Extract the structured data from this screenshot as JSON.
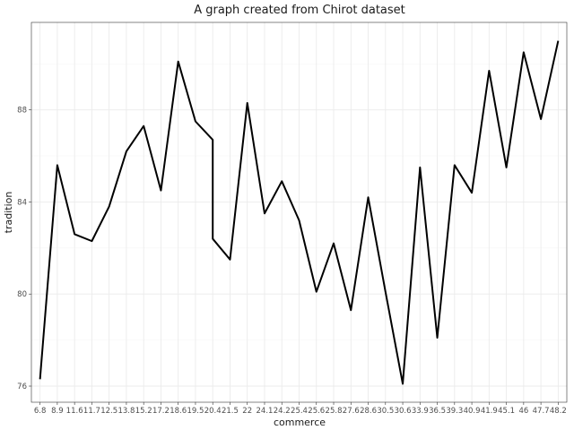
{
  "chart_data": {
    "type": "line",
    "title": "A graph created from Chirot dataset",
    "xlabel": "commerce",
    "ylabel": "tradition",
    "categories": [
      "6.8",
      "8.9",
      "11.6",
      "11.7",
      "12.5",
      "13.8",
      "15.2",
      "17.2",
      "18.6",
      "19.5",
      "20.4",
      "21.5",
      "22",
      "24.1",
      "24.2",
      "25.4",
      "25.6",
      "25.8",
      "27.6",
      "28.6",
      "30.5",
      "30.6",
      "33.9",
      "36.5",
      "39.3",
      "40.9",
      "41.9",
      "45.1",
      "46",
      "47.7",
      "48.2"
    ],
    "points": [
      {
        "x": "6.8",
        "y": 76.3
      },
      {
        "x": "8.9",
        "y": 85.6
      },
      {
        "x": "11.6",
        "y": 82.6
      },
      {
        "x": "11.7",
        "y": 82.3
      },
      {
        "x": "12.5",
        "y": 83.8
      },
      {
        "x": "13.8",
        "y": 86.2
      },
      {
        "x": "15.2",
        "y": 87.3
      },
      {
        "x": "17.2",
        "y": 84.5
      },
      {
        "x": "18.6",
        "y": 90.1
      },
      {
        "x": "19.5",
        "y": 87.5
      },
      {
        "x": "20.4",
        "y": 86.7
      },
      {
        "x": "20.4",
        "y": 82.4
      },
      {
        "x": "21.5",
        "y": 81.5
      },
      {
        "x": "22",
        "y": 88.3
      },
      {
        "x": "24.1",
        "y": 83.5
      },
      {
        "x": "24.2",
        "y": 84.9
      },
      {
        "x": "25.4",
        "y": 83.2
      },
      {
        "x": "25.6",
        "y": 80.1
      },
      {
        "x": "25.8",
        "y": 82.2
      },
      {
        "x": "27.6",
        "y": 79.3
      },
      {
        "x": "28.6",
        "y": 84.2
      },
      {
        "x": "30.5",
        "y": 80.1
      },
      {
        "x": "30.6",
        "y": 76.1
      },
      {
        "x": "33.9",
        "y": 85.5
      },
      {
        "x": "36.5",
        "y": 78.1
      },
      {
        "x": "39.3",
        "y": 85.6
      },
      {
        "x": "40.9",
        "y": 84.4
      },
      {
        "x": "41.9",
        "y": 89.7
      },
      {
        "x": "45.1",
        "y": 85.5
      },
      {
        "x": "46",
        "y": 90.5
      },
      {
        "x": "47.7",
        "y": 87.6
      },
      {
        "x": "48.2",
        "y": 91.0
      }
    ],
    "yticks": [
      76,
      80,
      84,
      88
    ],
    "ylim": [
      75.3,
      91.8
    ],
    "grid": true,
    "line_color": "#000000"
  }
}
